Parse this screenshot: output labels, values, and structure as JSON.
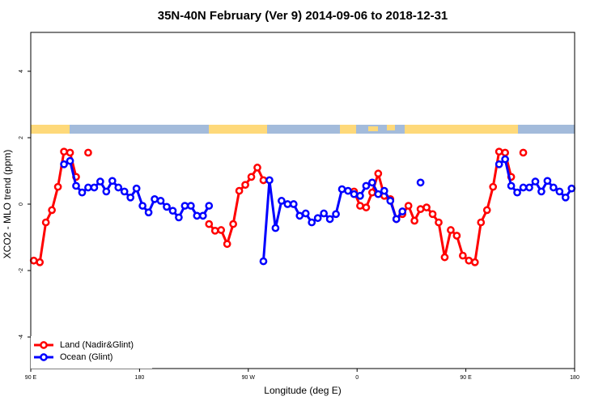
{
  "chart_data": {
    "type": "line",
    "title": "35N-40N February (Ver 9)   2014-09-06 to 2018-12-31",
    "x_label": "Longitude (deg E)",
    "y_label": "XCO2 - MLO trend (ppm)",
    "x": [
      92.5,
      97.5,
      102.5,
      107.5,
      112.5,
      117.5,
      122.5,
      127.5,
      132.5,
      137.5,
      142.5,
      147.5,
      152.5,
      157.5,
      162.5,
      167.5,
      172.5,
      177.5,
      182.5,
      187.5,
      192.5,
      197.5,
      202.5,
      207.5,
      212.5,
      217.5,
      222.5,
      227.5,
      232.5,
      237.5,
      242.5,
      247.5,
      252.5,
      257.5,
      262.5,
      267.5,
      272.5,
      277.5,
      282.5,
      287.5,
      292.5,
      297.5,
      302.5,
      307.5,
      312.5,
      317.5,
      322.5,
      327.5,
      332.5,
      337.5,
      342.5,
      347.5,
      352.5,
      357.5,
      362.5,
      367.5,
      372.5,
      377.5,
      382.5,
      387.5,
      392.5,
      397.5,
      402.5,
      407.5,
      412.5,
      417.5,
      422.5,
      427.5,
      432.5,
      437.5,
      442.5,
      447.5,
      452.5,
      457.5,
      462.5,
      467.5,
      472.5,
      477.5,
      482.5,
      487.5,
      492.5,
      497.5,
      502.5,
      507.5,
      512.5,
      517.5,
      522.5,
      527.5,
      532.5,
      537.5
    ],
    "series": [
      {
        "name": "Land (Nadir&Glint)",
        "color": "#ff0000",
        "values": [
          -1.7,
          -1.75,
          -0.55,
          -0.18,
          0.52,
          1.58,
          1.55,
          0.82,
          null,
          1.55,
          null,
          null,
          null,
          null,
          null,
          null,
          null,
          null,
          null,
          null,
          null,
          null,
          null,
          null,
          null,
          null,
          null,
          null,
          null,
          -0.6,
          -0.8,
          -0.78,
          -1.2,
          -0.6,
          0.4,
          0.58,
          0.82,
          1.1,
          0.72,
          null,
          null,
          null,
          null,
          null,
          null,
          null,
          null,
          null,
          null,
          null,
          null,
          null,
          null,
          0.38,
          -0.05,
          -0.1,
          0.35,
          0.92,
          0.25,
          0.15,
          -0.45,
          -0.3,
          -0.05,
          -0.5,
          -0.15,
          -0.1,
          -0.3,
          -0.55,
          -1.6,
          -0.78,
          -0.95,
          -1.55,
          -1.7,
          -1.75,
          -0.55,
          -0.18,
          0.52,
          1.58,
          1.55,
          0.82,
          null,
          1.55,
          null,
          null,
          null,
          null,
          null,
          null,
          null,
          null
        ]
      },
      {
        "name": "Ocean (Glint)",
        "color": "#0000ff",
        "values": [
          null,
          null,
          null,
          null,
          null,
          1.2,
          1.3,
          0.55,
          0.35,
          0.5,
          0.5,
          0.68,
          0.38,
          0.7,
          0.5,
          0.38,
          0.2,
          0.47,
          -0.05,
          -0.25,
          0.15,
          0.1,
          -0.08,
          -0.2,
          -0.4,
          -0.05,
          -0.05,
          -0.35,
          -0.35,
          -0.05,
          null,
          null,
          null,
          null,
          null,
          null,
          null,
          null,
          -1.72,
          0.72,
          -0.72,
          0.1,
          0,
          0,
          -0.35,
          -0.28,
          -0.55,
          -0.42,
          -0.28,
          -0.45,
          -0.3,
          0.45,
          0.4,
          0.3,
          0.25,
          0.55,
          0.65,
          0.3,
          0.4,
          0.1,
          -0.45,
          -0.22,
          null,
          null,
          0.65,
          null,
          null,
          null,
          null,
          null,
          null,
          null,
          null,
          null,
          null,
          null,
          null,
          1.2,
          1.35,
          0.55,
          0.35,
          0.5,
          0.5,
          0.68,
          0.38,
          0.7,
          0.5,
          0.38,
          0.2,
          0.47
        ]
      }
    ],
    "xlim": [
      90,
      540
    ],
    "xticks": [
      {
        "value": 90,
        "label": "90 E"
      },
      180,
      {
        "value": 270,
        "label": "90 W"
      },
      {
        "value": 360,
        "label": "0"
      },
      {
        "value": 450,
        "label": "90 E"
      },
      {
        "value": 540,
        "label": "180"
      }
    ],
    "ylim": [
      -4.95,
      5.17
    ],
    "yticks": [
      -4,
      -2,
      0,
      2,
      4
    ],
    "legend": "bottom-left"
  }
}
